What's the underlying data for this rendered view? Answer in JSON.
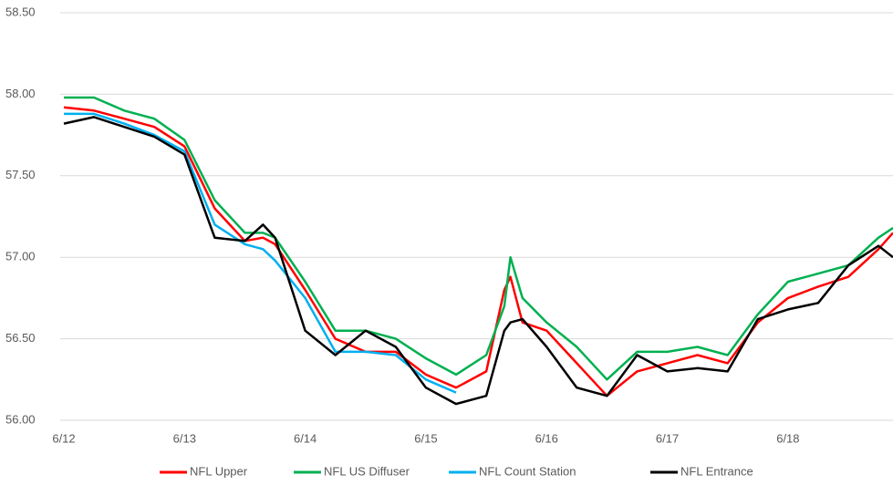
{
  "chart_data": {
    "type": "line",
    "x": [
      0,
      0.25,
      0.5,
      0.75,
      1,
      1.25,
      1.5,
      1.65,
      1.75,
      2,
      2.25,
      2.5,
      2.75,
      3,
      3.25,
      3.5,
      3.65,
      3.7,
      3.8,
      4,
      4.25,
      4.5,
      4.75,
      5,
      5.25,
      5.5,
      5.75,
      6,
      6.25,
      6.5,
      6.75,
      6.87
    ],
    "xlim": [
      0,
      6.87
    ],
    "xticks": [
      {
        "value": 0,
        "label": "6/12"
      },
      {
        "value": 1,
        "label": "6/13"
      },
      {
        "value": 2,
        "label": "6/14"
      },
      {
        "value": 3,
        "label": "6/15"
      },
      {
        "value": 4,
        "label": "6/16"
      },
      {
        "value": 5,
        "label": "6/17"
      },
      {
        "value": 6,
        "label": "6/18"
      }
    ],
    "ylim": [
      56,
      58.5
    ],
    "yticks": [
      {
        "value": 56,
        "label": "56.00"
      },
      {
        "value": 56.5,
        "label": "56.50"
      },
      {
        "value": 57,
        "label": "57.00"
      },
      {
        "value": 57.5,
        "label": "57.50"
      },
      {
        "value": 58,
        "label": "58.00"
      },
      {
        "value": 58.5,
        "label": "58.50"
      }
    ],
    "grid": true,
    "legend": "bottom",
    "series": [
      {
        "name": "NFL Upper",
        "color": "#ff0000",
        "values": [
          57.92,
          57.9,
          57.85,
          57.8,
          57.68,
          57.3,
          57.1,
          57.12,
          57.08,
          56.8,
          56.5,
          56.42,
          56.42,
          56.28,
          56.2,
          56.3,
          56.8,
          56.88,
          56.6,
          56.55,
          56.35,
          56.15,
          56.3,
          56.35,
          56.4,
          56.35,
          56.6,
          56.75,
          56.82,
          56.88,
          57.05,
          57.15
        ]
      },
      {
        "name": "NFL US Diffuser",
        "color": "#00b050",
        "values": [
          57.98,
          57.98,
          57.9,
          57.85,
          57.72,
          57.35,
          57.15,
          57.15,
          57.12,
          56.85,
          56.55,
          56.55,
          56.5,
          56.38,
          56.28,
          56.4,
          56.7,
          57.0,
          56.75,
          56.6,
          56.45,
          56.25,
          56.42,
          56.42,
          56.45,
          56.4,
          56.65,
          56.85,
          56.9,
          56.95,
          57.12,
          57.18
        ]
      },
      {
        "name": "NFL Count Station",
        "color": "#00b0f0",
        "values": [
          57.88,
          57.88,
          57.82,
          57.75,
          57.65,
          57.2,
          57.08,
          57.05,
          56.98,
          56.75,
          56.42,
          56.42,
          56.4,
          56.25,
          56.17,
          null,
          null,
          null,
          null,
          null,
          null,
          null,
          null,
          null,
          null,
          null,
          null,
          null,
          null,
          null,
          null,
          null
        ]
      },
      {
        "name": "NFL Entrance",
        "color": "#000000",
        "values": [
          57.82,
          57.86,
          57.8,
          57.74,
          57.63,
          57.12,
          57.1,
          57.2,
          57.12,
          56.55,
          56.4,
          56.55,
          56.45,
          56.2,
          56.1,
          56.15,
          56.55,
          56.6,
          56.62,
          56.45,
          56.2,
          56.15,
          56.4,
          56.3,
          56.32,
          56.3,
          56.62,
          56.68,
          56.72,
          56.95,
          57.07,
          57.0
        ]
      }
    ]
  }
}
